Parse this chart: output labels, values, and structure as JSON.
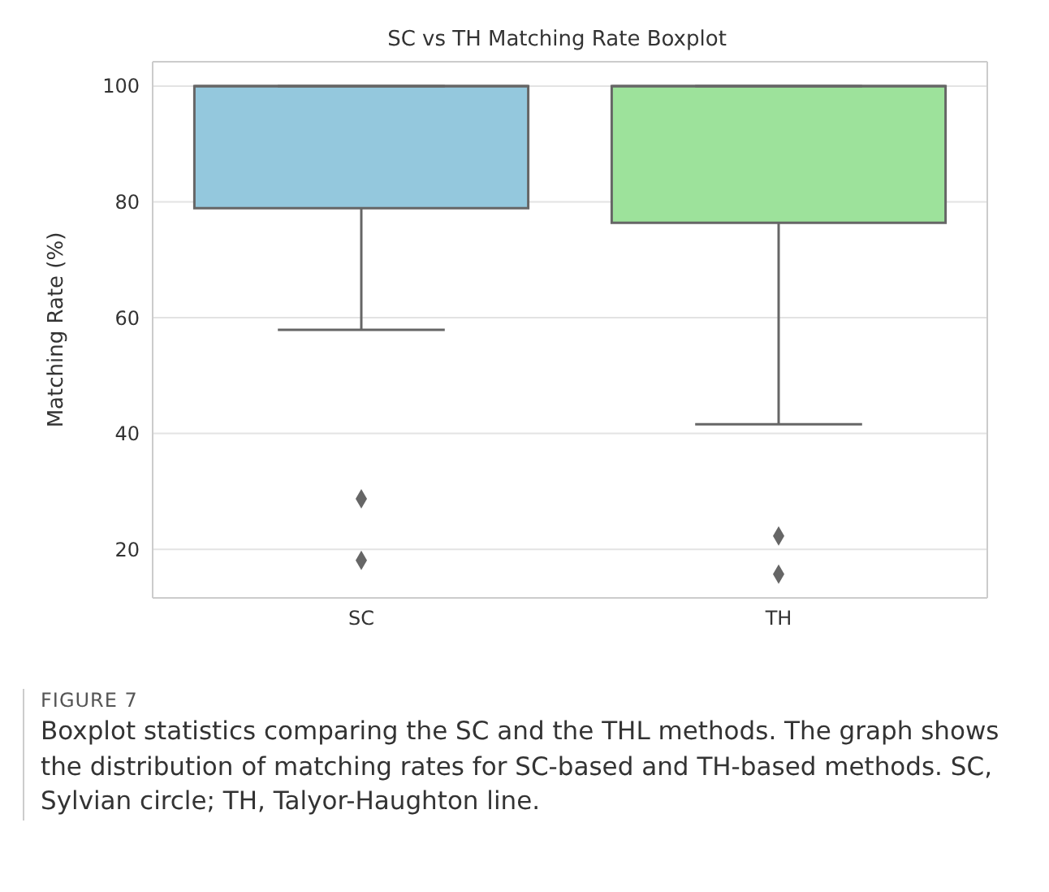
{
  "chart_data": {
    "type": "box",
    "title": "SC vs TH Matching Rate Boxplot",
    "ylabel": "Matching Rate (%)",
    "categories": [
      "SC",
      "TH"
    ],
    "boxes": [
      {
        "low": 57.9,
        "q1": 78.9,
        "median": 100,
        "q3": 100,
        "high": 100,
        "outliers": [
          28.7,
          18.1
        ]
      },
      {
        "low": 41.6,
        "q1": 76.4,
        "median": 100,
        "q3": 100,
        "high": 100,
        "outliers": [
          22.3,
          15.7
        ]
      }
    ],
    "colors": [
      "#94c8dd",
      "#9de29b"
    ],
    "ylim": [
      11.6,
      104.2
    ],
    "yticks": [
      20,
      40,
      60,
      80,
      100
    ],
    "grid": "y",
    "marker": "diamond",
    "annotations": [
      "FIGURE 7",
      "Boxplot statistics comparing the SC and the THL methods. The graph shows the distribution of matching rates for SC-based and TH-based methods. SC, Sylvian circle; TH, Talyor-Haughton line."
    ]
  }
}
